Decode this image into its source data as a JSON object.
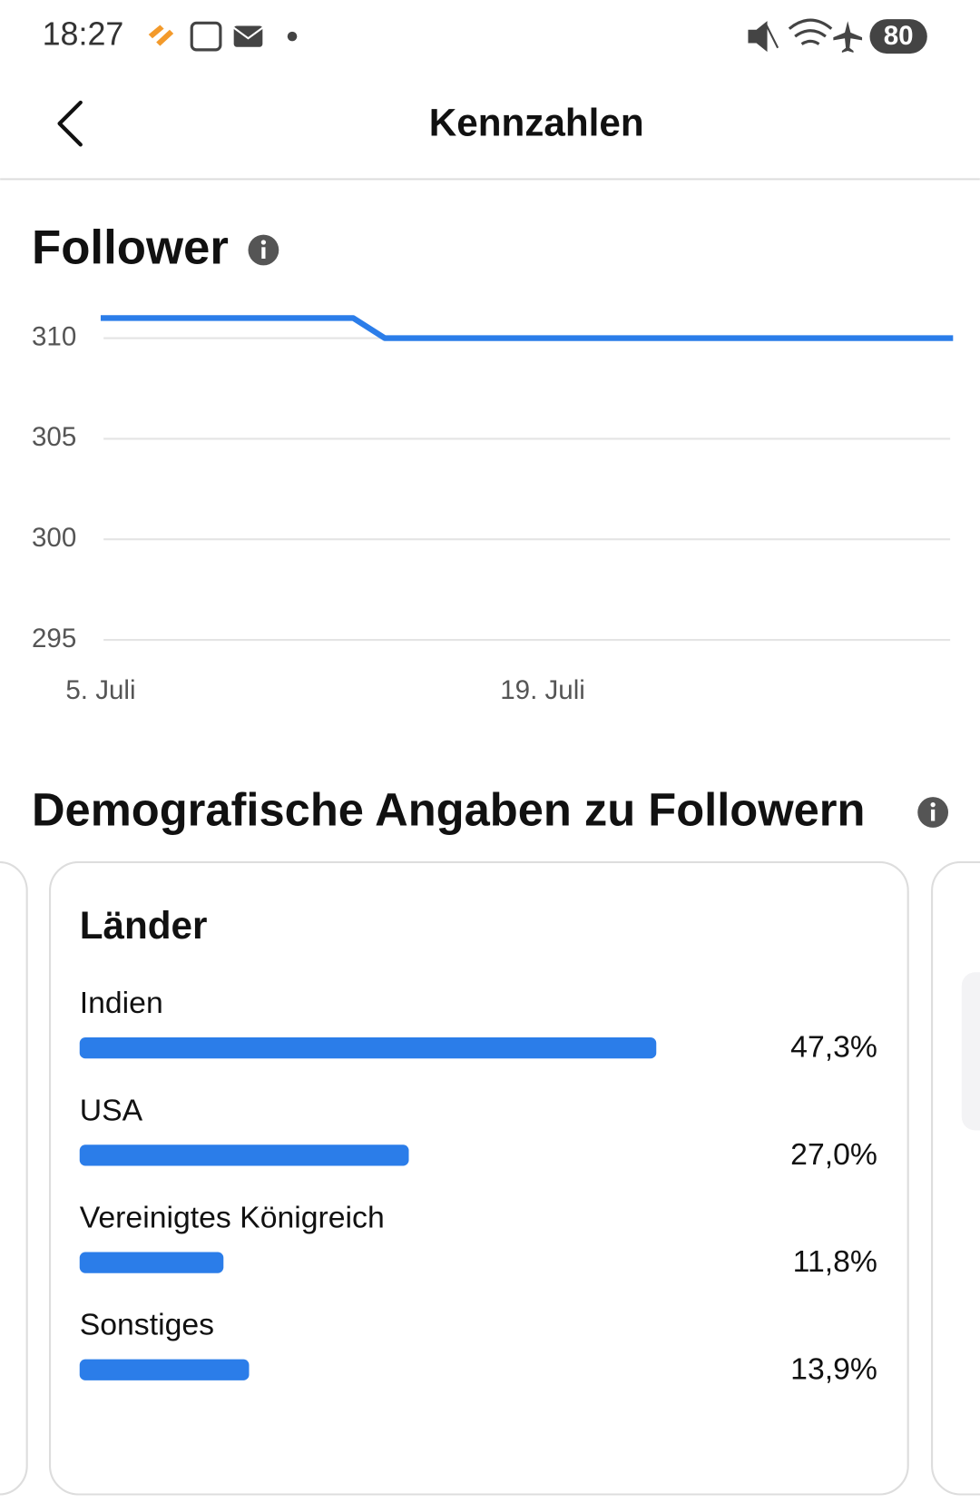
{
  "status_bar": {
    "time": "18:27",
    "battery": "80"
  },
  "header": {
    "title": "Kennzahlen"
  },
  "section": {
    "title": "Demografische Angaben zu Followern"
  },
  "chart_data": [
    {
      "type": "line",
      "title": "Follower",
      "x": [
        5,
        13,
        14,
        32
      ],
      "values": [
        311,
        311,
        310,
        310
      ],
      "color": "#2b7de9",
      "xlim": [
        5,
        32
      ],
      "xticks": [
        {
          "value": 5,
          "label": "5. Juli"
        },
        {
          "value": 19,
          "label": "19. Juli"
        }
      ],
      "ylim": [
        295,
        311
      ],
      "yticks": [
        295,
        300,
        305,
        310
      ],
      "grid": true
    },
    {
      "type": "bar",
      "orientation": "horizontal",
      "title": "Länder",
      "categories": [
        "Indien",
        "USA",
        "Vereinigtes Königreich",
        "Sonstiges"
      ],
      "values": [
        47.3,
        27.0,
        11.8,
        13.9
      ],
      "value_labels": [
        "47,3%",
        "27,0%",
        "11,8%",
        "13,9%"
      ],
      "color": "#2b7de9"
    }
  ]
}
